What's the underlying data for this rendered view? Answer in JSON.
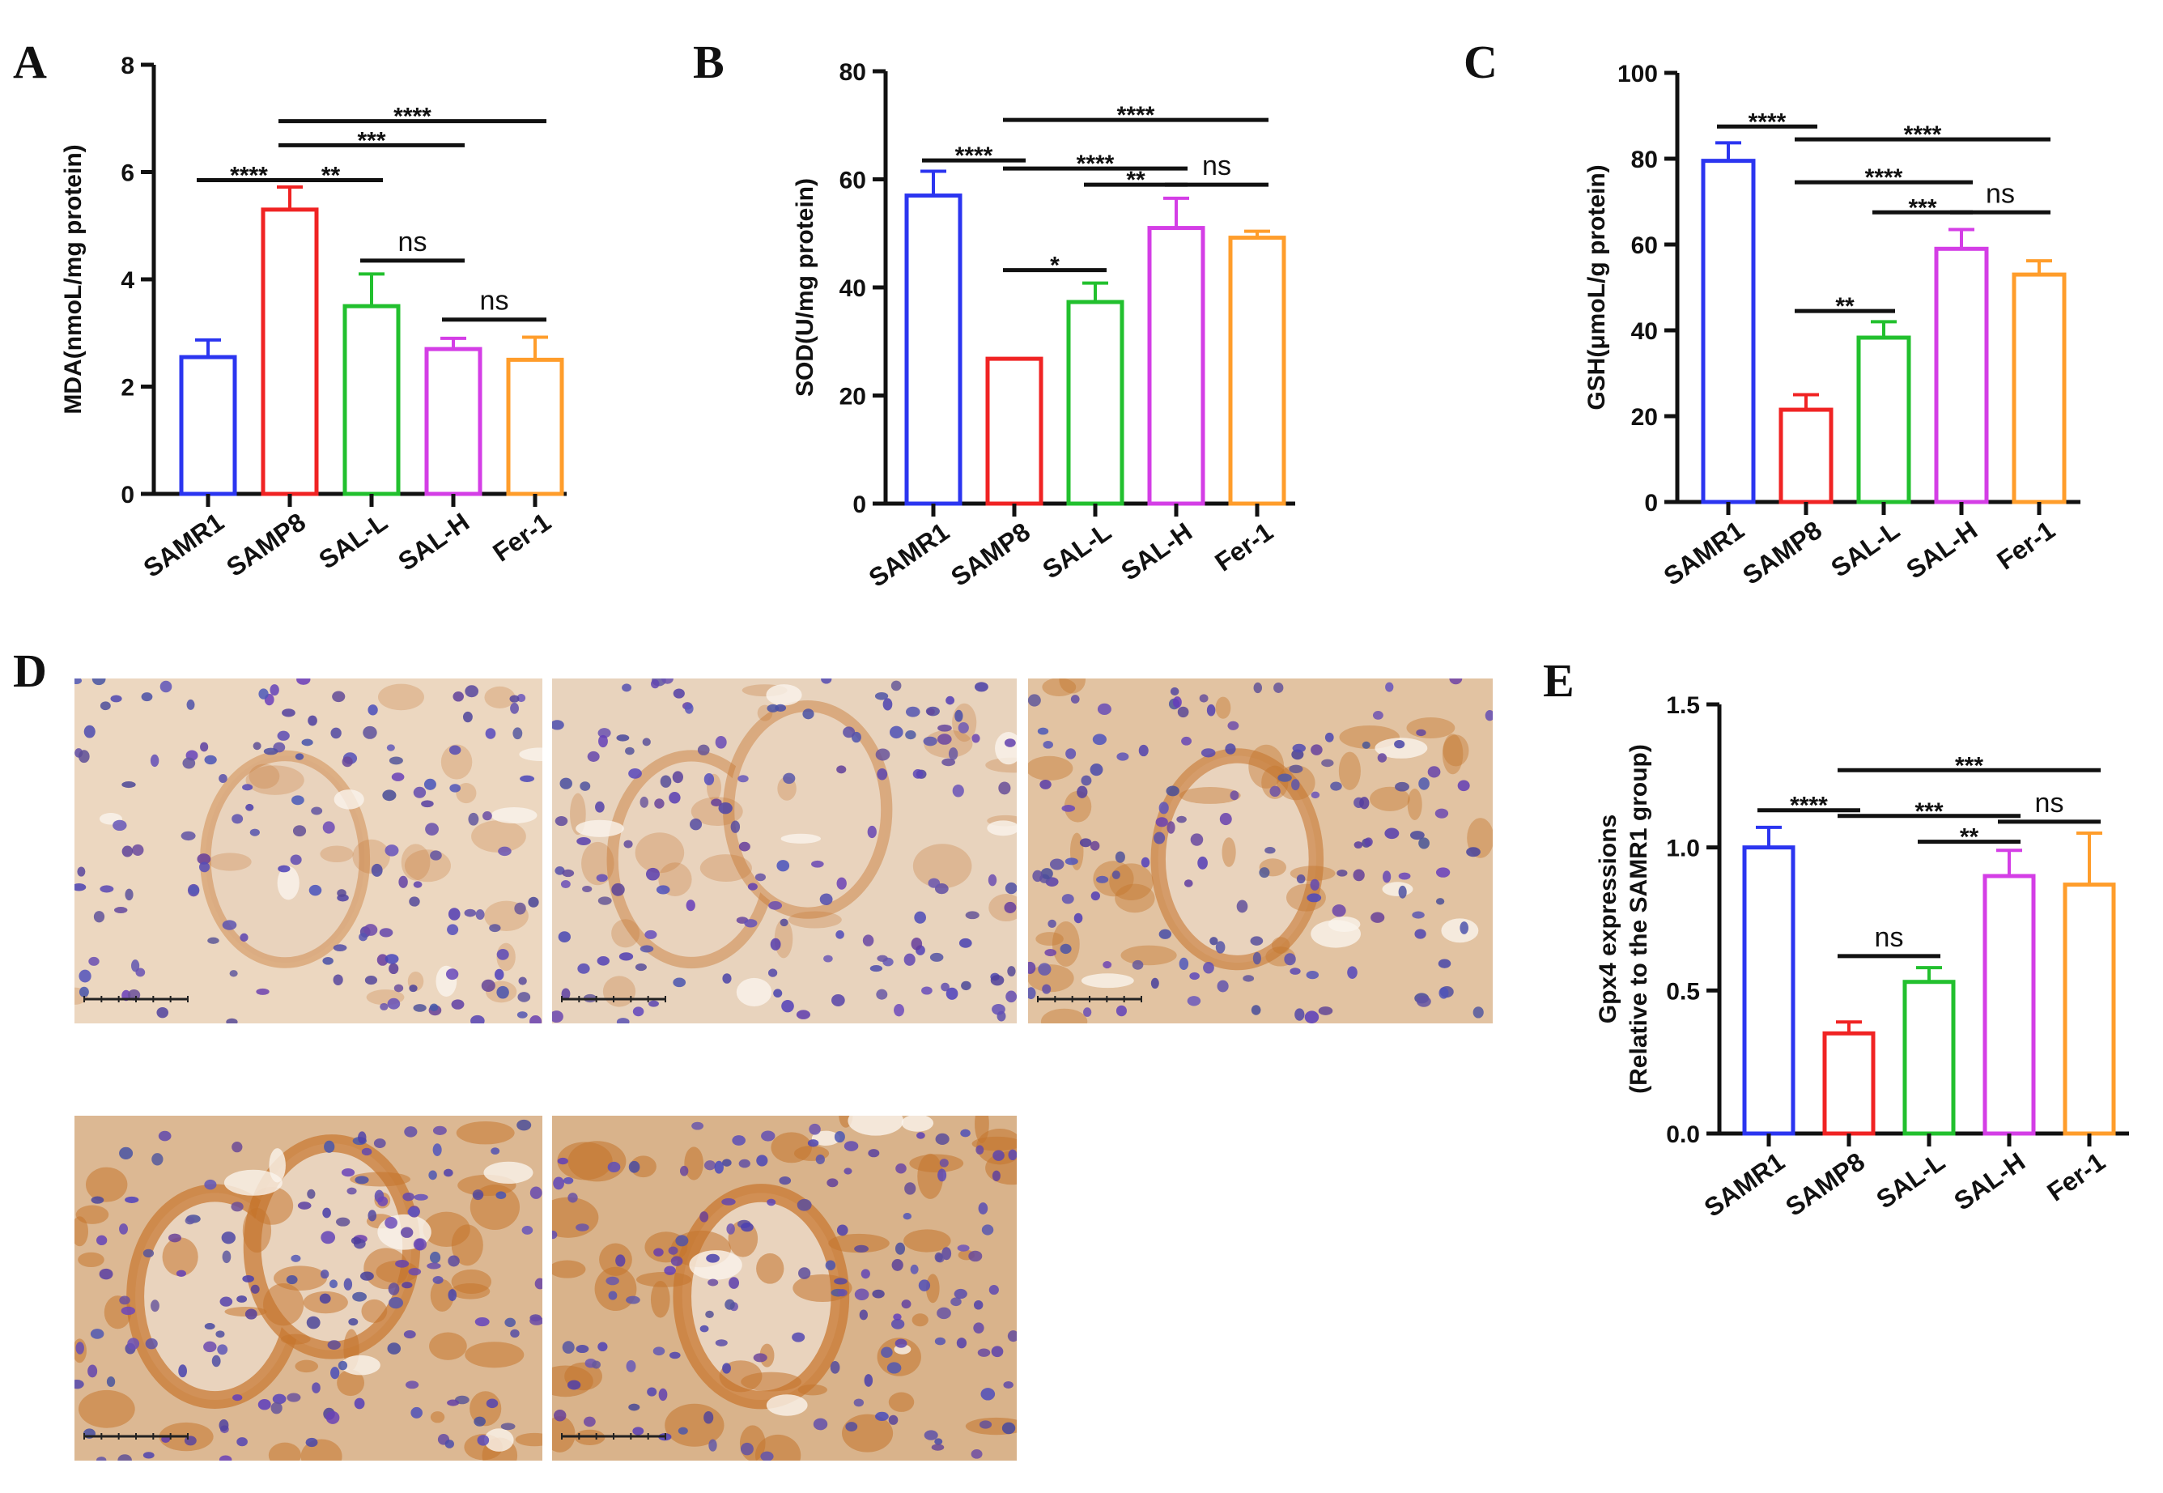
{
  "figure": {
    "panel_letters": [
      "A",
      "B",
      "C",
      "D",
      "E"
    ]
  },
  "chart_data": [
    {
      "panel": "A",
      "type": "bar",
      "categories": [
        "SAMR1",
        "SAMP8",
        "SAL-L",
        "SAL-H",
        "Fer-1"
      ],
      "values": [
        2.55,
        5.3,
        3.5,
        2.7,
        2.5
      ],
      "errors": [
        0.32,
        0.42,
        0.6,
        0.2,
        0.42
      ],
      "colors": [
        "#2b35f0",
        "#f02323",
        "#22c02e",
        "#d43ee6",
        "#ff9d2b"
      ],
      "ylabel": "MDA(nmoL/mg protein)",
      "ylim": [
        0,
        8
      ],
      "yticks": [
        0,
        2,
        4,
        6,
        8
      ],
      "comparisons": [
        {
          "a": 0,
          "b": 1,
          "label": "****",
          "y": 5.85
        },
        {
          "a": 1,
          "b": 2,
          "label": "**",
          "y": 5.85
        },
        {
          "a": 2,
          "b": 3,
          "label": "ns",
          "y": 4.35
        },
        {
          "a": 3,
          "b": 4,
          "label": "ns",
          "y": 3.25
        },
        {
          "a": 1,
          "b": 3,
          "label": "***",
          "y": 6.5
        },
        {
          "a": 1,
          "b": 4,
          "label": "****",
          "y": 6.95
        }
      ]
    },
    {
      "panel": "B",
      "type": "bar",
      "categories": [
        "SAMR1",
        "SAMP8",
        "SAL-L",
        "SAL-H",
        "Fer-1"
      ],
      "values": [
        57,
        26.8,
        37.3,
        51,
        49.2
      ],
      "errors": [
        4.5,
        0,
        3.5,
        5.5,
        1.2
      ],
      "colors": [
        "#2b35f0",
        "#f02323",
        "#22c02e",
        "#d43ee6",
        "#ff9d2b"
      ],
      "ylabel": "SOD(U/mg protein)",
      "ylim": [
        0,
        80
      ],
      "yticks": [
        0,
        20,
        40,
        60,
        80
      ],
      "comparisons": [
        {
          "a": 0,
          "b": 1,
          "label": "****",
          "y": 63.5
        },
        {
          "a": 1,
          "b": 2,
          "label": "*",
          "y": 43.2
        },
        {
          "a": 1,
          "b": 3,
          "label": "****",
          "y": 62
        },
        {
          "a": 2,
          "b": 3,
          "label": "**",
          "y": 59
        },
        {
          "a": 3,
          "b": 4,
          "label": "ns",
          "y": 59
        },
        {
          "a": 1,
          "b": 4,
          "label": "****",
          "y": 71
        }
      ]
    },
    {
      "panel": "C",
      "type": "bar",
      "categories": [
        "SAMR1",
        "SAMP8",
        "SAL-L",
        "SAL-H",
        "Fer-1"
      ],
      "values": [
        79.5,
        21.5,
        38.3,
        59,
        53
      ],
      "errors": [
        4.2,
        3.5,
        3.7,
        4.5,
        3.2
      ],
      "colors": [
        "#2b35f0",
        "#f02323",
        "#22c02e",
        "#d43ee6",
        "#ff9d2b"
      ],
      "ylabel": "GSH(μmoL/g protein)",
      "ylim": [
        0,
        100
      ],
      "yticks": [
        0,
        20,
        40,
        60,
        80,
        100
      ],
      "comparisons": [
        {
          "a": 0,
          "b": 1,
          "label": "****",
          "y": 87.5
        },
        {
          "a": 1,
          "b": 4,
          "label": "****",
          "y": 84.5
        },
        {
          "a": 1,
          "b": 3,
          "label": "****",
          "y": 74.5
        },
        {
          "a": 2,
          "b": 3,
          "label": "***",
          "y": 67.5
        },
        {
          "a": 3,
          "b": 4,
          "label": "ns",
          "y": 67.5
        },
        {
          "a": 1,
          "b": 2,
          "label": "**",
          "y": 44.5
        }
      ]
    },
    {
      "panel": "E",
      "type": "bar",
      "categories": [
        "SAMR1",
        "SAMP8",
        "SAL-L",
        "SAL-H",
        "Fer-1"
      ],
      "values": [
        1.0,
        0.35,
        0.53,
        0.9,
        0.87
      ],
      "errors": [
        0.07,
        0.04,
        0.05,
        0.09,
        0.18
      ],
      "colors": [
        "#2b35f0",
        "#f02323",
        "#22c02e",
        "#d43ee6",
        "#ff9d2b"
      ],
      "ylabel_lines": [
        "Gpx4  expressions",
        "(Relative to the SAMR1 group)"
      ],
      "ylim": [
        0,
        1.5
      ],
      "yticks": [
        "0.0",
        "0.5",
        "1.0",
        "1.5"
      ],
      "comparisons": [
        {
          "a": 0,
          "b": 1,
          "label": "****",
          "y": 1.13
        },
        {
          "a": 1,
          "b": 3,
          "label": "***",
          "y": 1.11
        },
        {
          "a": 1,
          "b": 4,
          "label": "***",
          "y": 1.27
        },
        {
          "a": 2,
          "b": 3,
          "label": "**",
          "y": 1.02
        },
        {
          "a": 3,
          "b": 4,
          "label": "ns",
          "y": 1.09
        },
        {
          "a": 1,
          "b": 2,
          "label": "ns",
          "y": 0.62
        }
      ]
    }
  ],
  "micrographs": {
    "count": 5,
    "tint_colors": [
      "#ecd7c0",
      "#e8d3bd",
      "#e2c3a2",
      "#dcb893",
      "#d9b38b"
    ],
    "stain_intensity": [
      0.25,
      0.3,
      0.6,
      0.85,
      0.9
    ]
  }
}
